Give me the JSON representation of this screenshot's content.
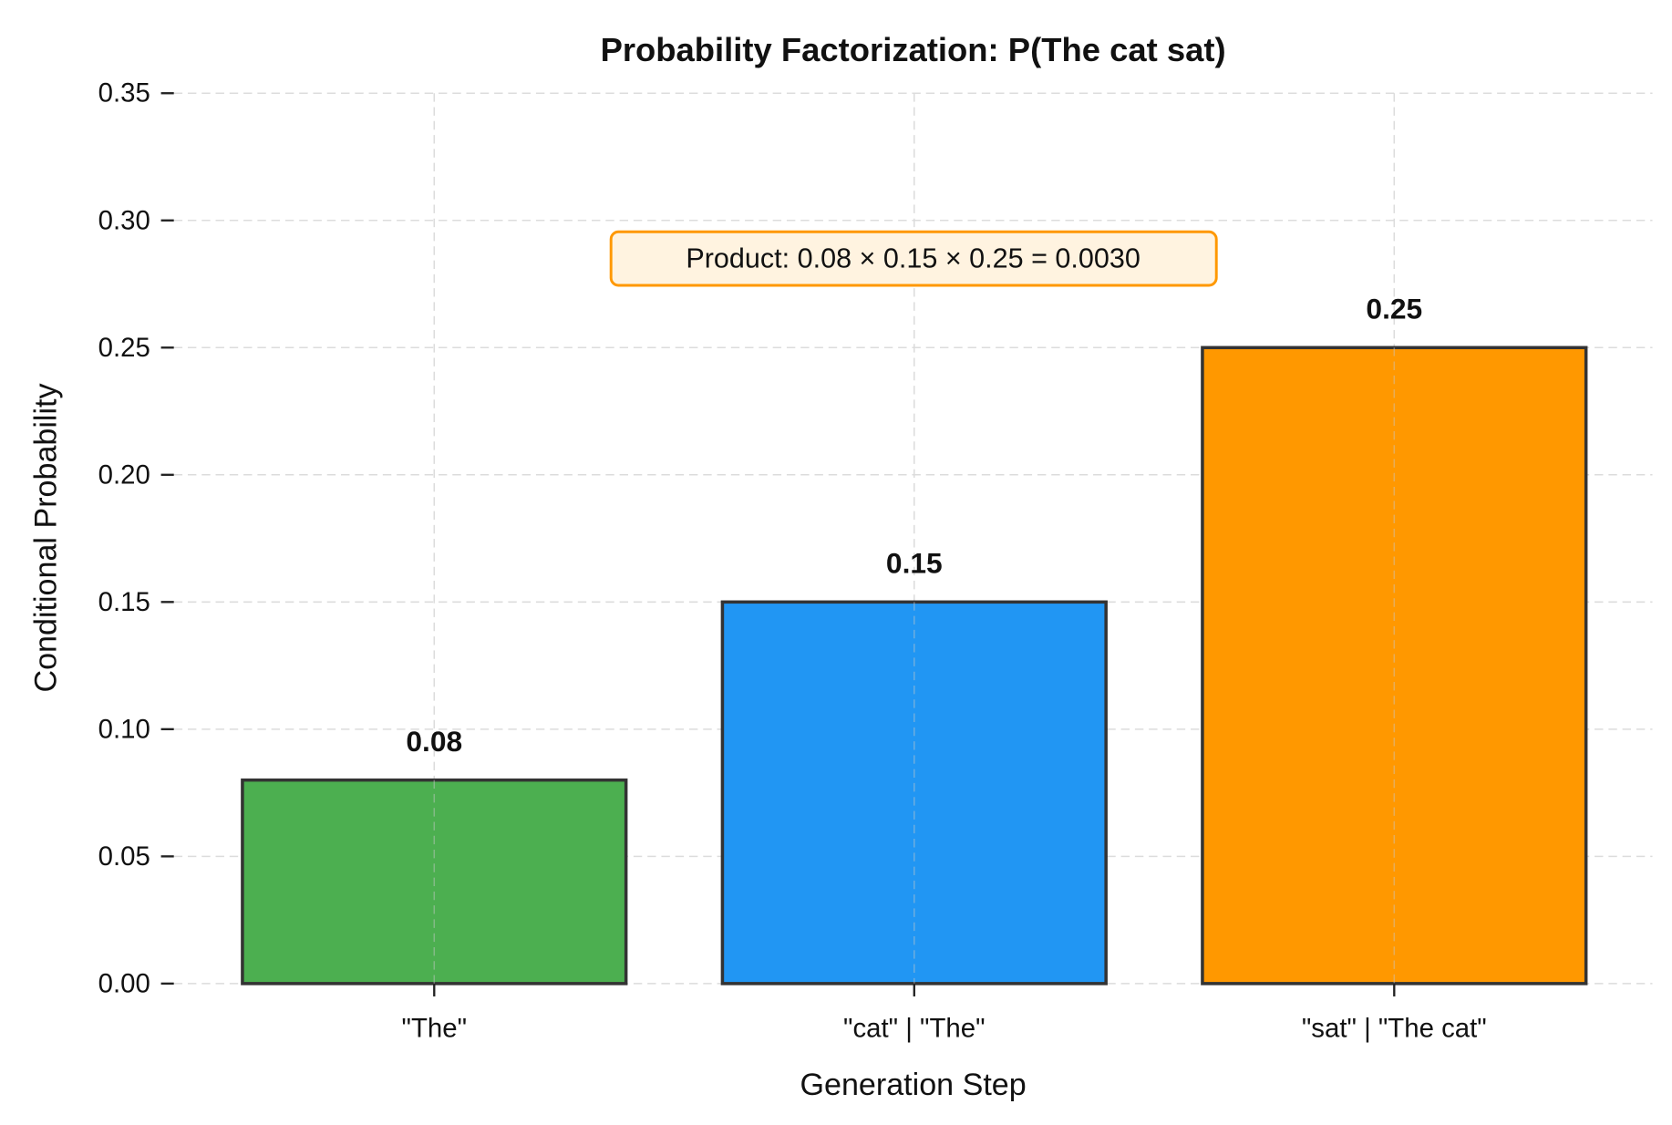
{
  "chart_data": {
    "type": "bar",
    "title": "Probability Factorization: P(The cat sat)",
    "xlabel": "Generation Step",
    "ylabel": "Conditional Probability",
    "categories": [
      "\"The\"",
      "\"cat\" | \"The\"",
      "\"sat\" | \"The cat\""
    ],
    "values": [
      0.08,
      0.15,
      0.25
    ],
    "data_labels": [
      "0.08",
      "0.15",
      "0.25"
    ],
    "colors": [
      "#4caf50",
      "#2196f3",
      "#ff9800"
    ],
    "ylim": [
      0,
      0.35
    ],
    "yticks": [
      "0.00",
      "0.05",
      "0.10",
      "0.15",
      "0.20",
      "0.25",
      "0.30",
      "0.35"
    ],
    "grid": true,
    "annotation": {
      "text": "Product: 0.08 × 0.15 × 0.25 = 0.0030",
      "y": 0.285,
      "border_color": "#ff9800",
      "fill_color": "#fff3e0"
    }
  }
}
